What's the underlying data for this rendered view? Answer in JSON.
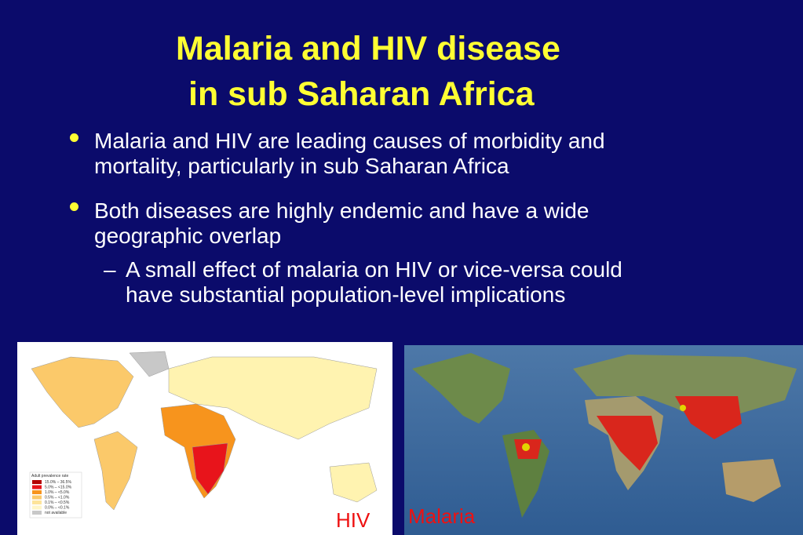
{
  "title": {
    "lines": [
      "Malaria and HIV disease",
      "in sub Saharan Africa"
    ]
  },
  "bullets": [
    {
      "lines": [
        "Malaria and HIV are leading causes of morbidity and",
        "mortality, particularly in sub Saharan Africa"
      ]
    },
    {
      "lines": [
        "Both diseases are highly endemic and have a wide",
        "geographic overlap"
      ],
      "sub": {
        "marker": "–",
        "lines": [
          "A small effect of malaria on HIV or vice-versa could",
          "have substantial population-level implications"
        ]
      }
    }
  ],
  "hiv_map": {
    "legend_title": "Adult prevalence rate",
    "legend": [
      "15.0% – 36.5%",
      "5.0% – <15.0%",
      "1.0% – <5.0%",
      "0.5% – <1.0%",
      "0.1% – <0.5%",
      "0.0% – <0.1%",
      "not available"
    ],
    "caption": "HIV"
  },
  "malaria_map": {
    "caption": "Malaria"
  }
}
